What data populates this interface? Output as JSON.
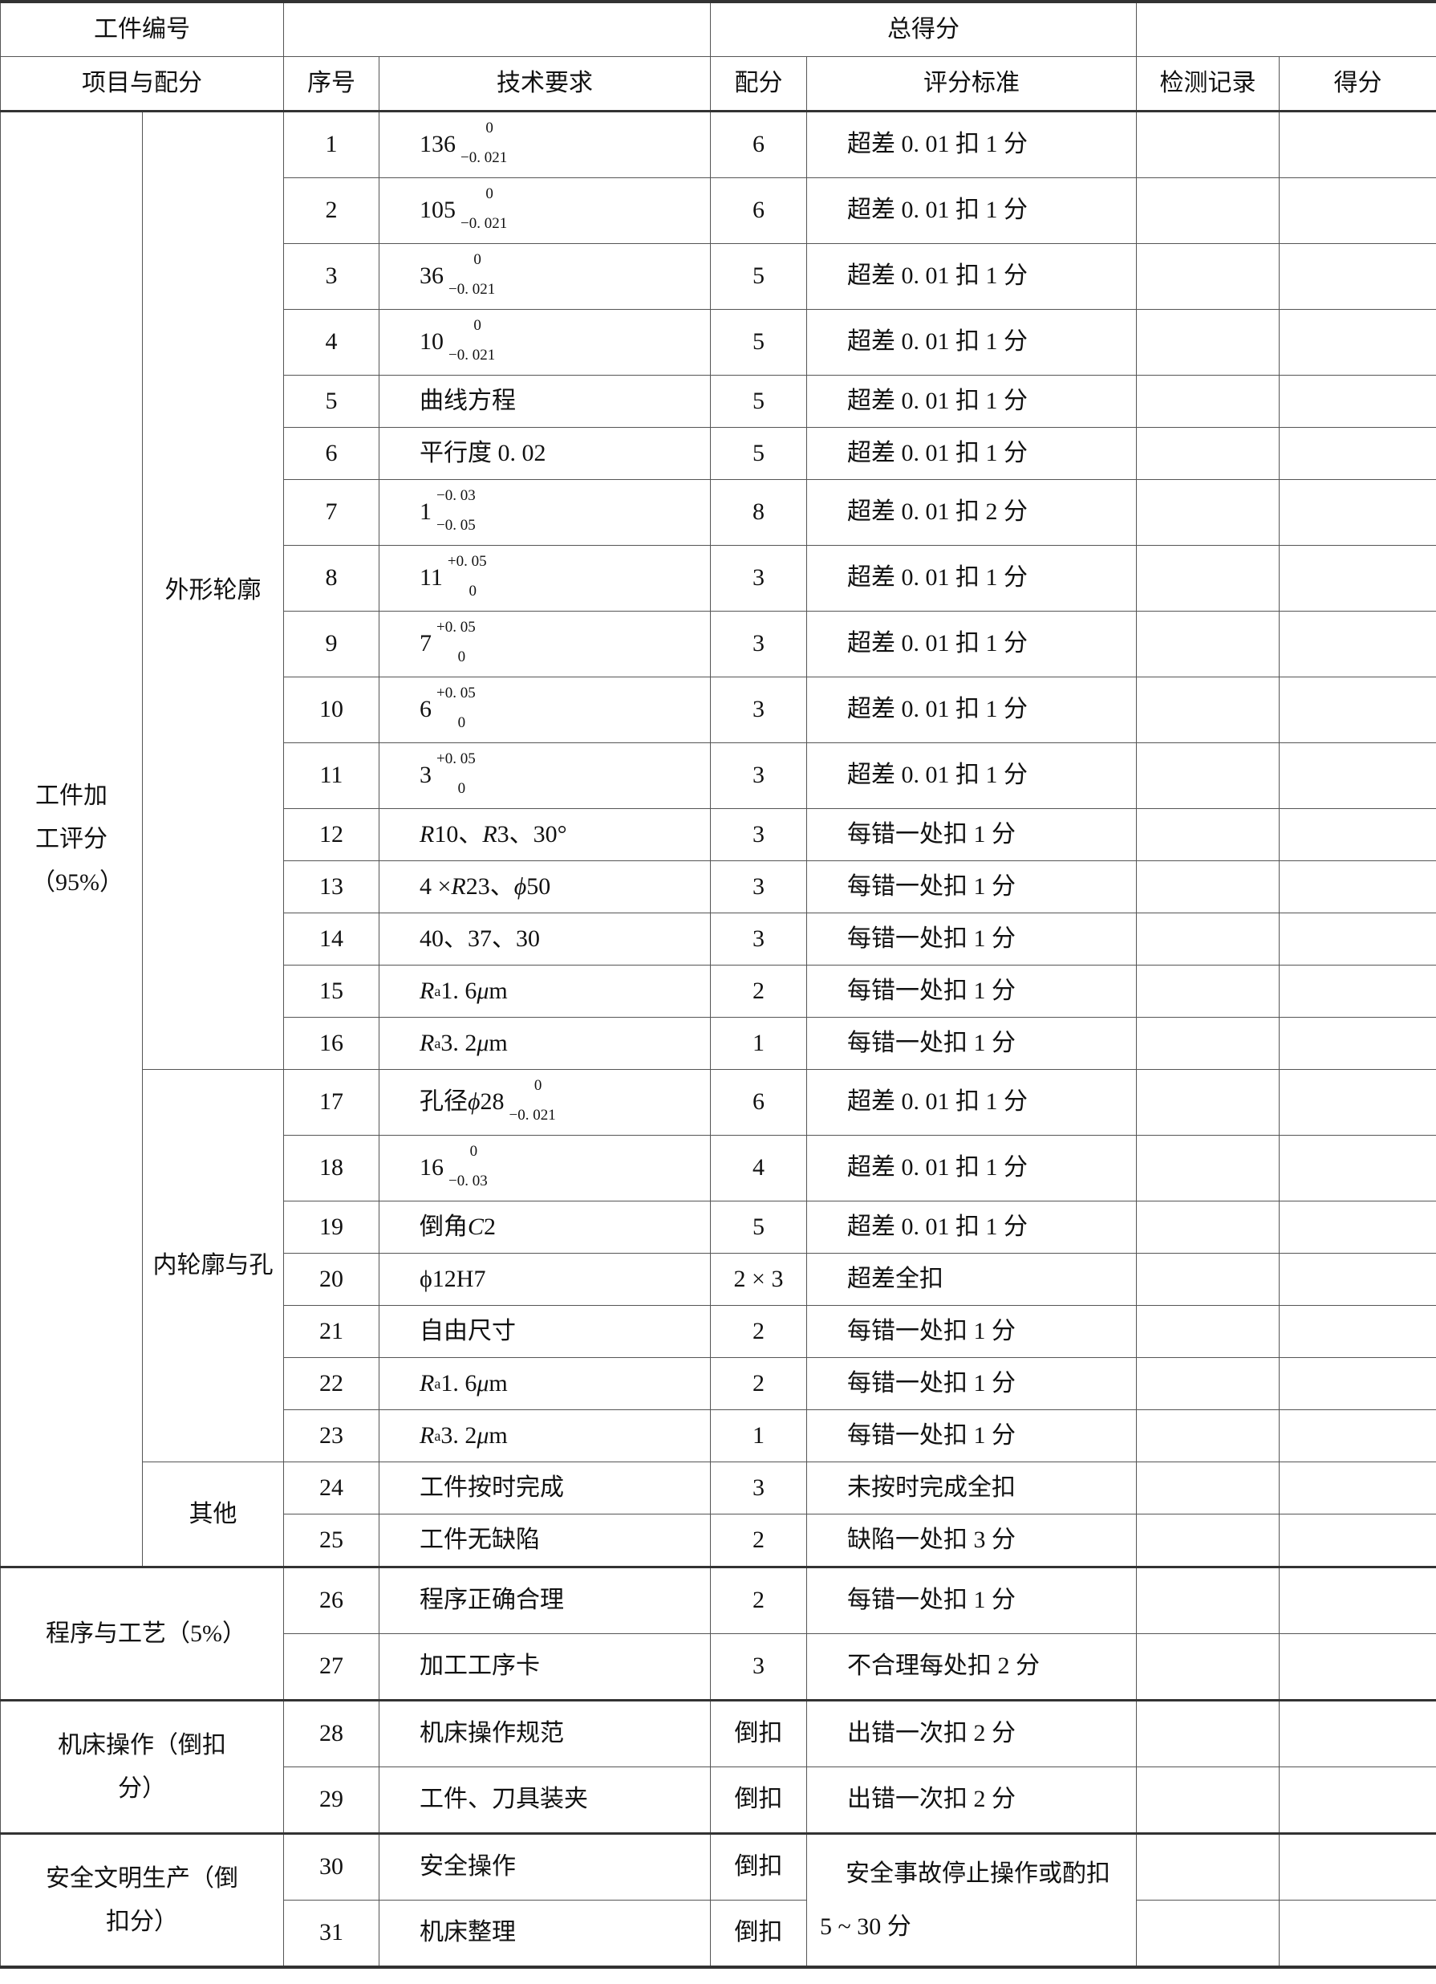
{
  "header": {
    "workpiece_no_label": "工件编号",
    "workpiece_no_value": "",
    "total_score_label": "总得分",
    "total_score_value": "",
    "columns": [
      "项目与配分",
      "序号",
      "技术要求",
      "配分",
      "评分标准",
      "检测记录",
      "得分"
    ]
  },
  "groups": {
    "machining": "工件加工评分（95%）",
    "outer": "外形轮廓",
    "inner": "内轮廓与孔",
    "other": "其他",
    "program": "程序与工艺（5%）",
    "machine": "机床操作（倒扣分）",
    "safety": "安全文明生产（倒扣分）"
  },
  "safety_criteria": "安全事故停止操作或酌扣 5 ~ 30 分",
  "rows": [
    {
      "no": "1",
      "req": [
        {
          "t": "136"
        }
      ],
      "tol": {
        "upper": "0",
        "lower": "−0. 021"
      },
      "score": "6",
      "criteria": "超差 0. 01 扣 1 分"
    },
    {
      "no": "2",
      "req": [
        {
          "t": "105"
        }
      ],
      "tol": {
        "upper": "0",
        "lower": "−0. 021"
      },
      "score": "6",
      "criteria": "超差 0. 01 扣 1 分"
    },
    {
      "no": "3",
      "req": [
        {
          "t": "36"
        }
      ],
      "tol": {
        "upper": "0",
        "lower": "−0. 021"
      },
      "score": "5",
      "criteria": "超差 0. 01 扣 1 分"
    },
    {
      "no": "4",
      "req": [
        {
          "t": "10"
        }
      ],
      "tol": {
        "upper": "0",
        "lower": "−0. 021"
      },
      "score": "5",
      "criteria": "超差 0. 01 扣 1 分"
    },
    {
      "no": "5",
      "req": [
        {
          "t": "曲线方程"
        }
      ],
      "score": "5",
      "criteria": "超差 0. 01 扣 1 分"
    },
    {
      "no": "6",
      "req": [
        {
          "t": "平行度 0. 02"
        }
      ],
      "score": "5",
      "criteria": "超差 0. 01 扣 1 分"
    },
    {
      "no": "7",
      "req": [
        {
          "t": "1"
        }
      ],
      "tol": {
        "upper": "−0. 03",
        "lower": "−0. 05"
      },
      "score": "8",
      "criteria": "超差 0. 01 扣 2 分"
    },
    {
      "no": "8",
      "req": [
        {
          "t": "11"
        }
      ],
      "tol": {
        "upper": "+0. 05",
        "lower": "0"
      },
      "score": "3",
      "criteria": "超差 0. 01 扣 1 分"
    },
    {
      "no": "9",
      "req": [
        {
          "t": "7"
        }
      ],
      "tol": {
        "upper": "+0. 05",
        "lower": "0"
      },
      "score": "3",
      "criteria": "超差 0. 01 扣 1 分"
    },
    {
      "no": "10",
      "req": [
        {
          "t": "6"
        }
      ],
      "tol": {
        "upper": "+0. 05",
        "lower": "0"
      },
      "score": "3",
      "criteria": "超差 0. 01 扣 1 分"
    },
    {
      "no": "11",
      "req": [
        {
          "t": "3"
        }
      ],
      "tol": {
        "upper": "+0. 05",
        "lower": "0"
      },
      "score": "3",
      "criteria": "超差 0. 01 扣 1 分"
    },
    {
      "no": "12",
      "req": [
        {
          "t": "R",
          "i": true
        },
        {
          "t": "10、"
        },
        {
          "t": "R",
          "i": true
        },
        {
          "t": "3、30°"
        }
      ],
      "score": "3",
      "criteria": "每错一处扣 1 分"
    },
    {
      "no": "13",
      "req": [
        {
          "t": "4 × "
        },
        {
          "t": "R",
          "i": true
        },
        {
          "t": "23、"
        },
        {
          "t": "ϕ",
          "i": true
        },
        {
          "t": "50"
        }
      ],
      "score": "3",
      "criteria": "每错一处扣 1 分"
    },
    {
      "no": "14",
      "req": [
        {
          "t": "40、37、30"
        }
      ],
      "score": "3",
      "criteria": "每错一处扣 1 分"
    },
    {
      "no": "15",
      "req": [
        {
          "t": "R",
          "i": true
        },
        {
          "t": "a",
          "sub": true
        },
        {
          "t": "1. 6"
        },
        {
          "t": "μ",
          "i": true
        },
        {
          "t": "m"
        }
      ],
      "score": "2",
      "criteria": "每错一处扣 1 分"
    },
    {
      "no": "16",
      "req": [
        {
          "t": "R",
          "i": true
        },
        {
          "t": "a",
          "sub": true
        },
        {
          "t": "3. 2"
        },
        {
          "t": "μ",
          "i": true
        },
        {
          "t": "m"
        }
      ],
      "score": "1",
      "criteria": "每错一处扣 1 分"
    },
    {
      "no": "17",
      "req": [
        {
          "t": "孔径 "
        },
        {
          "t": "ϕ",
          "i": true
        },
        {
          "t": "28"
        }
      ],
      "tol": {
        "upper": "0",
        "lower": "−0. 021"
      },
      "score": "6",
      "criteria": "超差 0. 01 扣 1 分"
    },
    {
      "no": "18",
      "req": [
        {
          "t": "16"
        }
      ],
      "tol": {
        "upper": "0",
        "lower": "−0. 03"
      },
      "score": "4",
      "criteria": "超差 0. 01 扣 1 分"
    },
    {
      "no": "19",
      "req": [
        {
          "t": "倒角 "
        },
        {
          "t": "C",
          "i": true
        },
        {
          "t": "2"
        }
      ],
      "score": "5",
      "criteria": "超差 0. 01 扣 1 分"
    },
    {
      "no": "20",
      "req": [
        {
          "t": "ϕ12H7"
        }
      ],
      "score": "2 × 3",
      "criteria": "超差全扣"
    },
    {
      "no": "21",
      "req": [
        {
          "t": "自由尺寸"
        }
      ],
      "score": "2",
      "criteria": "每错一处扣 1 分"
    },
    {
      "no": "22",
      "req": [
        {
          "t": "R",
          "i": true
        },
        {
          "t": "a",
          "sub": true
        },
        {
          "t": "1. 6"
        },
        {
          "t": "μ",
          "i": true
        },
        {
          "t": "m"
        }
      ],
      "score": "2",
      "criteria": "每错一处扣 1 分"
    },
    {
      "no": "23",
      "req": [
        {
          "t": "R",
          "i": true
        },
        {
          "t": "a",
          "sub": true
        },
        {
          "t": "3. 2"
        },
        {
          "t": "μ",
          "i": true
        },
        {
          "t": "m"
        }
      ],
      "score": "1",
      "criteria": "每错一处扣 1 分"
    },
    {
      "no": "24",
      "req": [
        {
          "t": "工件按时完成"
        }
      ],
      "score": "3",
      "criteria": "未按时完成全扣"
    },
    {
      "no": "25",
      "req": [
        {
          "t": "工件无缺陷"
        }
      ],
      "score": "2",
      "criteria": "缺陷一处扣 3 分"
    },
    {
      "no": "26",
      "req": [
        {
          "t": "程序正确合理"
        }
      ],
      "score": "2",
      "criteria": "每错一处扣 1 分"
    },
    {
      "no": "27",
      "req": [
        {
          "t": "加工工序卡"
        }
      ],
      "score": "3",
      "criteria": "不合理每处扣 2 分"
    },
    {
      "no": "28",
      "req": [
        {
          "t": "机床操作规范"
        }
      ],
      "score": "倒扣",
      "criteria": "出错一次扣 2 分"
    },
    {
      "no": "29",
      "req": [
        {
          "t": "工件、刀具装夹"
        }
      ],
      "score": "倒扣",
      "criteria": "出错一次扣 2 分"
    },
    {
      "no": "30",
      "req": [
        {
          "t": "安全操作"
        }
      ],
      "score": "倒扣"
    },
    {
      "no": "31",
      "req": [
        {
          "t": "机床整理"
        }
      ],
      "score": "倒扣"
    }
  ]
}
